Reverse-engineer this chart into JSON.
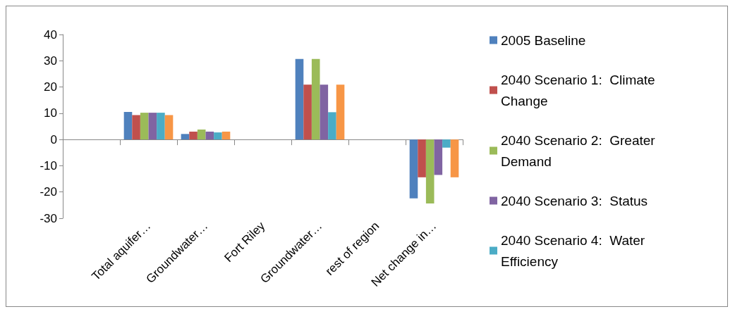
{
  "chart_data": {
    "type": "bar",
    "categories": [
      null,
      "Total aquifer…",
      "Groundwater…",
      "Fort Riley",
      "Groundwater…",
      "rest of region",
      "Net change in…"
    ],
    "series": [
      {
        "name": "2005 Baseline",
        "color": "#4f81bd",
        "values": [
          null,
          10.5,
          2.1,
          null,
          30.7,
          null,
          -22.4
        ]
      },
      {
        "name": "2040 Scenario 1:  Climate Change",
        "color": "#c0504d",
        "values": [
          null,
          9.3,
          3.0,
          null,
          20.9,
          null,
          -14.4
        ]
      },
      {
        "name": "2040 Scenario 2:  Greater Demand",
        "color": "#9bbb59",
        "values": [
          null,
          10.2,
          3.8,
          null,
          30.7,
          null,
          -24.4
        ]
      },
      {
        "name": "2040 Scenario 3:  Status",
        "color": "#8064a2",
        "values": [
          null,
          10.2,
          3.0,
          null,
          20.9,
          null,
          -13.5
        ]
      },
      {
        "name": "2040 Scenario 4:  Water Efficiency",
        "color": "#4bacc6",
        "values": [
          null,
          10.2,
          2.7,
          null,
          10.4,
          null,
          -3.1
        ]
      },
      {
        "color": "#f79646",
        "values": [
          null,
          9.3,
          3.0,
          null,
          20.9,
          null,
          -14.4
        ]
      }
    ],
    "ylim": [
      -30,
      40
    ],
    "yticks": [
      -30,
      -20,
      -10,
      0,
      10,
      20,
      30,
      40
    ],
    "legend": "right"
  }
}
